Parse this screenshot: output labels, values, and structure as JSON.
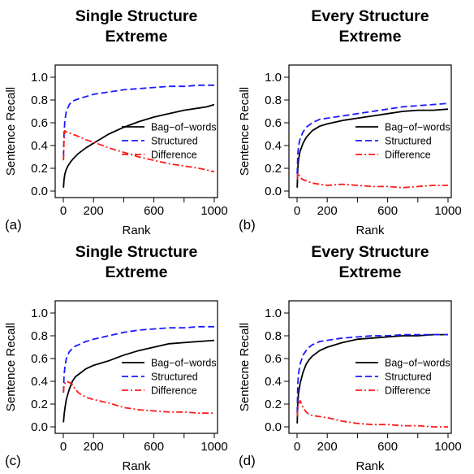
{
  "chart_data": [
    {
      "type": "line",
      "panel_label": "(a)",
      "title_lines": [
        "Single Structure",
        "Extreme"
      ],
      "xlabel": "Rank",
      "ylabel": "Sentence Recall",
      "xlim": [
        0,
        1000
      ],
      "ylim": [
        0,
        1
      ],
      "x_ticks": [
        "0",
        "200",
        "600",
        "1000"
      ],
      "y_ticks": [
        "0.0",
        "0.2",
        "0.4",
        "0.6",
        "0.8",
        "1.0"
      ],
      "legend": "right",
      "series": [
        {
          "name": "Bag−of−words",
          "color": "#000000",
          "dash": "solid",
          "x": [
            1,
            5,
            10,
            20,
            30,
            50,
            70,
            100,
            150,
            200,
            250,
            300,
            400,
            500,
            600,
            700,
            800,
            900,
            950,
            1000
          ],
          "y": [
            0.03,
            0.1,
            0.15,
            0.19,
            0.22,
            0.26,
            0.29,
            0.33,
            0.38,
            0.42,
            0.46,
            0.5,
            0.56,
            0.61,
            0.65,
            0.68,
            0.71,
            0.73,
            0.74,
            0.76
          ]
        },
        {
          "name": "Structured",
          "color": "#1a1aff",
          "dash": "dash",
          "x": [
            1,
            5,
            10,
            20,
            40,
            60,
            80,
            100,
            150,
            200,
            300,
            400,
            500,
            600,
            700,
            800,
            900,
            1000
          ],
          "y": [
            0.3,
            0.5,
            0.62,
            0.7,
            0.76,
            0.79,
            0.8,
            0.81,
            0.83,
            0.85,
            0.87,
            0.89,
            0.9,
            0.91,
            0.92,
            0.92,
            0.93,
            0.93
          ]
        },
        {
          "name": "Difference",
          "color": "#ff1a1a",
          "dash": "dashdot",
          "x": [
            1,
            5,
            10,
            20,
            40,
            60,
            80,
            100,
            150,
            200,
            300,
            400,
            500,
            600,
            700,
            800,
            900,
            1000
          ],
          "y": [
            0.27,
            0.45,
            0.53,
            0.52,
            0.51,
            0.5,
            0.49,
            0.48,
            0.45,
            0.43,
            0.38,
            0.34,
            0.3,
            0.27,
            0.24,
            0.22,
            0.2,
            0.17
          ]
        }
      ]
    },
    {
      "type": "line",
      "panel_label": "(b)",
      "title_lines": [
        "Every Structure",
        "Extreme"
      ],
      "xlabel": "Rank",
      "ylabel": "Sentence Recall",
      "xlim": [
        0,
        1000
      ],
      "ylim": [
        0,
        1
      ],
      "x_ticks": [
        "0",
        "200",
        "600",
        "1000"
      ],
      "y_ticks": [
        "0.0",
        "0.2",
        "0.4",
        "0.6",
        "0.8",
        "1.0"
      ],
      "legend": "right",
      "series": [
        {
          "name": "Bag−of−words",
          "color": "#000000",
          "dash": "solid",
          "x": [
            1,
            5,
            10,
            20,
            40,
            60,
            80,
            100,
            150,
            200,
            300,
            400,
            500,
            600,
            700,
            800,
            900,
            1000
          ],
          "y": [
            0.03,
            0.2,
            0.28,
            0.35,
            0.42,
            0.47,
            0.5,
            0.53,
            0.57,
            0.59,
            0.62,
            0.64,
            0.66,
            0.68,
            0.7,
            0.71,
            0.71,
            0.72
          ]
        },
        {
          "name": "Structured",
          "color": "#1a1aff",
          "dash": "dash",
          "x": [
            1,
            5,
            10,
            20,
            40,
            60,
            80,
            100,
            150,
            200,
            300,
            400,
            500,
            600,
            700,
            800,
            900,
            1000
          ],
          "y": [
            0.15,
            0.32,
            0.4,
            0.46,
            0.52,
            0.56,
            0.58,
            0.6,
            0.63,
            0.64,
            0.66,
            0.68,
            0.7,
            0.72,
            0.74,
            0.75,
            0.76,
            0.77
          ]
        },
        {
          "name": "Difference",
          "color": "#ff1a1a",
          "dash": "dashdot",
          "x": [
            1,
            5,
            10,
            20,
            40,
            60,
            80,
            100,
            150,
            200,
            300,
            400,
            500,
            600,
            700,
            800,
            900,
            1000
          ],
          "y": [
            0.1,
            0.16,
            0.15,
            0.12,
            0.1,
            0.09,
            0.08,
            0.07,
            0.06,
            0.05,
            0.06,
            0.05,
            0.04,
            0.04,
            0.03,
            0.04,
            0.05,
            0.05
          ]
        }
      ]
    },
    {
      "type": "line",
      "panel_label": "(c)",
      "title_lines": [
        "Single Structure",
        "Extreme"
      ],
      "xlabel": "Rank",
      "ylabel": "Sentence Recall",
      "xlim": [
        0,
        1000
      ],
      "ylim": [
        0,
        1
      ],
      "x_ticks": [
        "0",
        "200",
        "600",
        "1000"
      ],
      "y_ticks": [
        "0.0",
        "0.2",
        "0.4",
        "0.6",
        "0.8",
        "1.0"
      ],
      "legend": "right",
      "series": [
        {
          "name": "Bag−of−words",
          "color": "#000000",
          "dash": "solid",
          "x": [
            1,
            5,
            10,
            20,
            40,
            60,
            80,
            100,
            150,
            200,
            300,
            400,
            500,
            600,
            700,
            800,
            900,
            1000
          ],
          "y": [
            0.04,
            0.1,
            0.16,
            0.24,
            0.33,
            0.4,
            0.44,
            0.46,
            0.51,
            0.54,
            0.58,
            0.63,
            0.67,
            0.7,
            0.73,
            0.74,
            0.75,
            0.76
          ]
        },
        {
          "name": "Structured",
          "color": "#1a1aff",
          "dash": "dash",
          "x": [
            1,
            5,
            10,
            20,
            40,
            60,
            80,
            100,
            150,
            200,
            300,
            400,
            500,
            600,
            700,
            800,
            900,
            1000
          ],
          "y": [
            0.3,
            0.45,
            0.52,
            0.6,
            0.66,
            0.69,
            0.71,
            0.72,
            0.75,
            0.77,
            0.8,
            0.83,
            0.85,
            0.86,
            0.87,
            0.87,
            0.88,
            0.88
          ]
        },
        {
          "name": "Difference",
          "color": "#ff1a1a",
          "dash": "dashdot",
          "x": [
            1,
            5,
            10,
            20,
            40,
            60,
            80,
            100,
            150,
            200,
            300,
            400,
            500,
            600,
            700,
            800,
            900,
            1000
          ],
          "y": [
            0.3,
            0.37,
            0.38,
            0.4,
            0.39,
            0.37,
            0.33,
            0.3,
            0.26,
            0.24,
            0.21,
            0.17,
            0.15,
            0.14,
            0.13,
            0.13,
            0.12,
            0.12
          ]
        }
      ]
    },
    {
      "type": "line",
      "panel_label": "(d)",
      "title_lines": [
        "Every Structure",
        "Extreme"
      ],
      "xlabel": "Rank",
      "ylabel": "Sentecne Recall",
      "xlim": [
        0,
        1000
      ],
      "ylim": [
        0,
        1
      ],
      "x_ticks": [
        "0",
        "200",
        "600",
        "1000"
      ],
      "y_ticks": [
        "0.0",
        "0.2",
        "0.4",
        "0.6",
        "0.8",
        "1.0"
      ],
      "legend": "right",
      "series": [
        {
          "name": "Bag−of−words",
          "color": "#000000",
          "dash": "solid",
          "x": [
            1,
            5,
            10,
            20,
            40,
            60,
            80,
            100,
            150,
            200,
            300,
            400,
            500,
            600,
            700,
            800,
            900,
            1000
          ],
          "y": [
            0.03,
            0.22,
            0.3,
            0.38,
            0.48,
            0.55,
            0.59,
            0.62,
            0.67,
            0.7,
            0.74,
            0.77,
            0.78,
            0.79,
            0.8,
            0.8,
            0.81,
            0.81
          ]
        },
        {
          "name": "Structured",
          "color": "#1a1aff",
          "dash": "dash",
          "x": [
            1,
            5,
            10,
            20,
            40,
            60,
            80,
            100,
            150,
            200,
            300,
            400,
            500,
            600,
            700,
            800,
            900,
            1000
          ],
          "y": [
            0.12,
            0.38,
            0.47,
            0.55,
            0.63,
            0.67,
            0.7,
            0.72,
            0.75,
            0.76,
            0.78,
            0.79,
            0.8,
            0.8,
            0.81,
            0.81,
            0.81,
            0.81
          ]
        },
        {
          "name": "Difference",
          "color": "#ff1a1a",
          "dash": "dashdot",
          "x": [
            1,
            5,
            10,
            20,
            40,
            60,
            80,
            100,
            150,
            200,
            300,
            400,
            500,
            600,
            700,
            800,
            900,
            1000
          ],
          "y": [
            0.09,
            0.17,
            0.2,
            0.23,
            0.17,
            0.13,
            0.11,
            0.1,
            0.09,
            0.08,
            0.05,
            0.03,
            0.02,
            0.02,
            0.01,
            0.01,
            0.0,
            0.0
          ]
        }
      ]
    }
  ]
}
